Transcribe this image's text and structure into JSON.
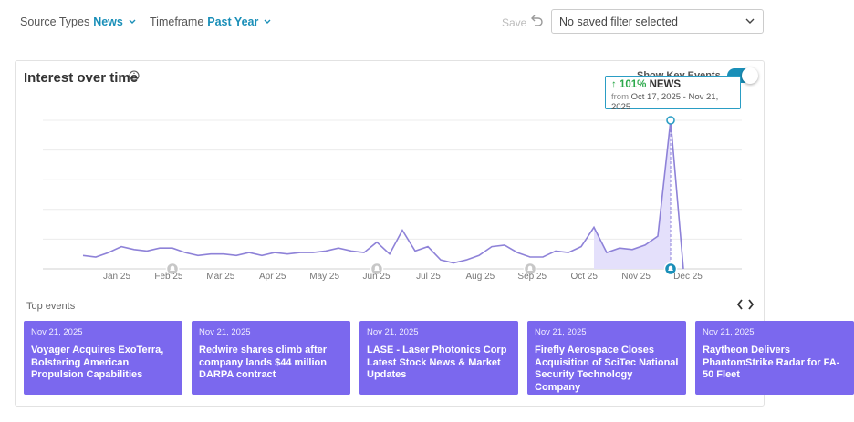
{
  "filters": {
    "source_label": "Source Types",
    "source_value": "News",
    "timeframe_label": "Timeframe",
    "timeframe_value": "Past Year"
  },
  "save_label": "Save",
  "saved_filter_placeholder": "No saved filter selected",
  "card": {
    "title": "Interest over time",
    "key_events_label": "Show Key Events"
  },
  "tooltip": {
    "change": "101%",
    "source": "NEWS",
    "from_label": "from",
    "range": "Oct 17, 2025 - Nov 21, 2025"
  },
  "chart_data": {
    "type": "line",
    "x_ticks": [
      "Jan 25",
      "Feb 25",
      "Mar 25",
      "Apr 25",
      "May 25",
      "Jun 25",
      "Jul 25",
      "Aug 25",
      "Sep 25",
      "Oct 25",
      "Nov 25",
      "Dec 25"
    ],
    "series": [
      {
        "values": [
          9,
          8,
          11,
          15,
          13,
          12,
          14,
          14,
          11,
          9,
          10,
          10,
          9,
          11,
          9,
          11,
          10,
          11,
          11,
          12,
          14,
          12,
          11,
          18,
          10,
          26,
          12,
          15,
          6,
          4,
          6,
          9,
          15,
          16,
          11,
          8,
          8,
          12,
          11,
          15,
          28,
          11,
          14,
          13,
          16,
          22,
          100,
          0
        ]
      }
    ],
    "highlight_start_index": 40,
    "highlight_end_index": 46,
    "ylim": [
      0,
      100
    ],
    "grid": true,
    "key_event_indices": [
      7,
      23,
      35,
      46
    ]
  },
  "top_events_label": "Top events",
  "events": [
    {
      "date": "Nov 21, 2025",
      "title": "Voyager Acquires ExoTerra, Bolstering American Propulsion Capabilities"
    },
    {
      "date": "Nov 21, 2025",
      "title": "Redwire shares climb after company lands $44 million DARPA contract"
    },
    {
      "date": "Nov 21, 2025",
      "title": "LASE - Laser Photonics Corp Latest Stock News & Market Updates"
    },
    {
      "date": "Nov 21, 2025",
      "title": "Firefly Aerospace Closes Acquisition of SciTec National Security Technology Company"
    },
    {
      "date": "Nov 21, 2025",
      "title": "Raytheon Delivers PhantomStrike Radar for FA-50 Fleet"
    }
  ],
  "colors": {
    "accent": "#1a8fb8",
    "series": "#8e82d8",
    "highlight_fill": "#e4e0fb",
    "event_card": "#7b68ee"
  }
}
